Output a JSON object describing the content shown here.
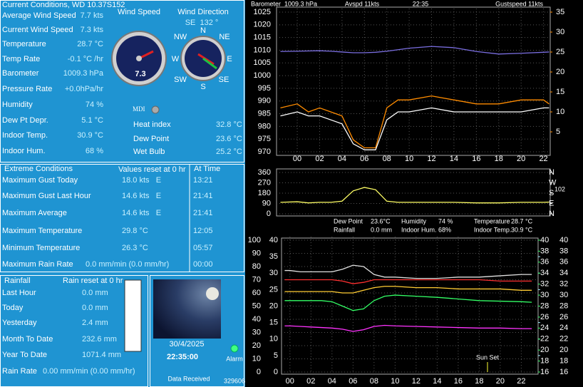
{
  "current": {
    "title": "Current Conditions, WD 10.37S152",
    "rows": [
      [
        "Average Wind Speed",
        "7.7 kts"
      ],
      [
        "Current Wind Speed",
        "7.3 kts"
      ],
      [
        "Temperature",
        "28.7 °C"
      ],
      [
        "Temp Rate",
        "-0.1 °C /hr"
      ],
      [
        "Barometer",
        "1009.3 hPa"
      ],
      [
        "Pressure Rate",
        "+0.0hPa/hr"
      ],
      [
        "Humidity",
        "74 %"
      ],
      [
        "Dew Pt Depr.",
        "5.1 °C"
      ],
      [
        "Indoor Temp.",
        "30.9 °C"
      ],
      [
        "Indoor Hum.",
        "68 %"
      ]
    ]
  },
  "gauges": {
    "speed_label": "Wind Speed",
    "speed_value": "7.3",
    "direction_label": "Wind Direction",
    "direction_value": "SE  132 °",
    "compass": [
      "N",
      "NE",
      "E",
      "SE",
      "S",
      "SW",
      "W",
      "NW"
    ],
    "mdi": "MDI"
  },
  "derived": [
    [
      "Heat index",
      "32.8 °C"
    ],
    [
      "Dew Point",
      "23.6 °C"
    ],
    [
      "Wet Bulb",
      "25.2 °C"
    ]
  ],
  "extremes": {
    "title": "Extreme Conditions",
    "reset_note": "Values reset at 0 hr",
    "time_header": "At Time",
    "rows": [
      [
        "Maximum Gust Today",
        "18.0 kts   E",
        "13:21"
      ],
      [
        "Maximum Gust Last Hour",
        "14.6 kts   E",
        "21:41"
      ],
      [
        "Maximum Average",
        "14.6 kts   E",
        "21:41"
      ],
      [
        "Maximum Temperature",
        "29.8 °C",
        "12:05"
      ],
      [
        "Minimum Temperature",
        "26.3 °C",
        "05:57"
      ],
      [
        "Maximum Rain Rate",
        "0.0 mm/min (0.0 mm/hr)",
        "00:00"
      ]
    ]
  },
  "rainfall": {
    "title": "Rainfall",
    "reset_note": "Rain reset at 0 hr",
    "rows": [
      [
        "Last Hour",
        "0.0 mm"
      ],
      [
        "Today",
        "0.0 mm"
      ],
      [
        "Yesterday",
        "2.4 mm"
      ],
      [
        "Month To Date",
        "232.6 mm"
      ],
      [
        "Year To Date",
        "1071.4 mm"
      ],
      [
        "Rain Rate",
        "0.00 mm/min (0.00 mm/hr)"
      ]
    ],
    "gauge": "0.0"
  },
  "station": {
    "date": "30/4/2025",
    "time": "22:35:00",
    "alarm": "Alarm",
    "data_received": "Data Received",
    "counter": "329606"
  },
  "chart_data": [
    {
      "type": "line",
      "annotations": [
        "Barometer  1009.3 hPa",
        "Avspd 11kts",
        "22:35",
        "Gustspeed 11kts"
      ],
      "x": [
        -1.5,
        0,
        1,
        2,
        3,
        4,
        5,
        6,
        7,
        8,
        9,
        10,
        12,
        14,
        16,
        18,
        20,
        22,
        22.5
      ],
      "xlim": [
        -1.85,
        22.6
      ],
      "xticks": [
        {
          "value": 0,
          "label": "00"
        },
        {
          "value": 2,
          "label": "02"
        },
        {
          "value": 4,
          "label": "04"
        },
        {
          "value": 6,
          "label": "06"
        },
        {
          "value": 8,
          "label": "08"
        },
        10,
        12,
        14,
        16,
        18,
        20,
        22
      ],
      "ylim": [
        970,
        1025
      ],
      "yticks": [
        970,
        975,
        980,
        985,
        990,
        995,
        1000,
        1005,
        1010,
        1015,
        1020,
        1025
      ],
      "y2lim": [
        0,
        35
      ],
      "y2ticks": [
        5,
        10,
        15,
        20,
        25,
        30,
        35
      ],
      "grid": true,
      "series": [
        {
          "color": "#7a6ee0",
          "values": [
            1009.5,
            1009.6,
            1009.7,
            1009.8,
            1009.6,
            1009.3,
            1009.0,
            1009.0,
            1009.2,
            1009.6,
            1010.2,
            1010.8,
            1011.5,
            1011.0,
            1009.5,
            1008.5,
            1008.8,
            1009.2,
            1009.3
          ]
        },
        {
          "color": "#ff8c00",
          "axis": "y2",
          "values": [
            11,
            12,
            10,
            11,
            10,
            9,
            3,
            1,
            1,
            11,
            13,
            13,
            14,
            13,
            12,
            12,
            13,
            13,
            12
          ]
        },
        {
          "color": "#ffffff",
          "axis": "y2",
          "values": [
            9,
            10,
            9,
            9,
            8,
            7,
            2,
            0.5,
            0.5,
            8,
            10,
            10,
            11,
            10,
            10,
            10,
            10,
            11,
            11
          ]
        }
      ]
    },
    {
      "type": "line",
      "annotations": [
        "102"
      ],
      "x": [
        -1.5,
        0,
        1,
        2,
        3,
        4,
        5,
        6,
        7,
        8,
        9,
        10,
        12,
        14,
        16,
        18,
        20,
        22,
        22.5
      ],
      "xlim": [
        -1.85,
        22.6
      ],
      "ylim": [
        0,
        360
      ],
      "yticks": [
        0,
        90,
        180,
        270,
        360
      ],
      "y2lim": [
        0,
        360
      ],
      "y2ticks": [
        {
          "value": 0,
          "label": "N"
        },
        {
          "value": 90,
          "label": "E"
        },
        {
          "value": 180,
          "label": "S"
        },
        {
          "value": 270,
          "label": "W"
        },
        {
          "value": 360,
          "label": "N"
        }
      ],
      "grid": true,
      "series": [
        {
          "color": "#ffff66",
          "values": [
            100,
            105,
            95,
            100,
            100,
            110,
            200,
            230,
            210,
            110,
            100,
            100,
            100,
            100,
            95,
            95,
            100,
            100,
            102
          ]
        }
      ]
    },
    {
      "type": "line",
      "annotations": [
        "Sun Set"
      ],
      "readings": [
        [
          "Dew Point",
          "23.6°C"
        ],
        [
          "Humidity",
          "74 %"
        ],
        [
          "Temperature",
          "28.7 °C"
        ],
        [
          "Rainfall",
          "0.0 mm"
        ],
        [
          "Indoor Hum.",
          "68%"
        ],
        [
          "Indoor Temp.",
          "30.9 °C"
        ]
      ],
      "x": [
        -0.5,
        0,
        1,
        2,
        3,
        4,
        5,
        6,
        7,
        8,
        9,
        10,
        12,
        14,
        16,
        18,
        20,
        22,
        23
      ],
      "xlim": [
        -0.8,
        23.6
      ],
      "xticks": [
        {
          "value": 0,
          "label": "00"
        },
        {
          "value": 2,
          "label": "02"
        },
        {
          "value": 4,
          "label": "04"
        },
        {
          "value": 6,
          "label": "06"
        },
        {
          "value": 8,
          "label": "08"
        },
        10,
        12,
        14,
        16,
        18,
        20,
        22
      ],
      "ylim": [
        0,
        100
      ],
      "yticks": [
        0,
        10,
        20,
        30,
        40,
        50,
        60,
        70,
        80,
        90,
        100
      ],
      "y2lim": [
        0,
        40
      ],
      "y2ticks": [
        0,
        5,
        10,
        15,
        20,
        25,
        30,
        35,
        40
      ],
      "y3lim": [
        16,
        40
      ],
      "y3ticks": [
        16,
        18,
        20,
        22,
        24,
        26,
        28,
        30,
        32,
        34,
        36,
        38,
        40
      ],
      "grid": true,
      "series": [
        {
          "color": "#e0e0e0",
          "values": [
            77,
            77,
            76,
            76,
            76,
            76,
            78,
            81,
            80,
            74,
            72,
            72,
            71,
            71,
            72,
            72,
            73,
            74,
            74
          ]
        },
        {
          "color": "#ff3030",
          "values": [
            70,
            70,
            70,
            70,
            70,
            70,
            69,
            67,
            68,
            70,
            70,
            70,
            70,
            70,
            70,
            70,
            69,
            69,
            69
          ]
        },
        {
          "color": "#ffcc33",
          "values": [
            61,
            61,
            61,
            61,
            61,
            61,
            60,
            60,
            62,
            64,
            65,
            65,
            64,
            64,
            63,
            63,
            63,
            62,
            62
          ]
        },
        {
          "color": "#33ff66",
          "axis": "y3",
          "values": [
            29,
            29,
            29,
            29,
            29,
            28.8,
            28,
            27.2,
            27.5,
            29,
            29.8,
            30,
            29.8,
            29.6,
            29.3,
            29,
            28.9,
            28.8,
            28.7
          ]
        },
        {
          "color": "#ff33ff",
          "axis": "y3",
          "values": [
            24.4,
            24.4,
            24.3,
            24.2,
            24.1,
            24.0,
            23.8,
            23.4,
            23.7,
            24.3,
            24.5,
            24.4,
            24.3,
            24.2,
            24.1,
            24.0,
            24.0,
            23.9,
            23.9
          ]
        }
      ]
    }
  ]
}
